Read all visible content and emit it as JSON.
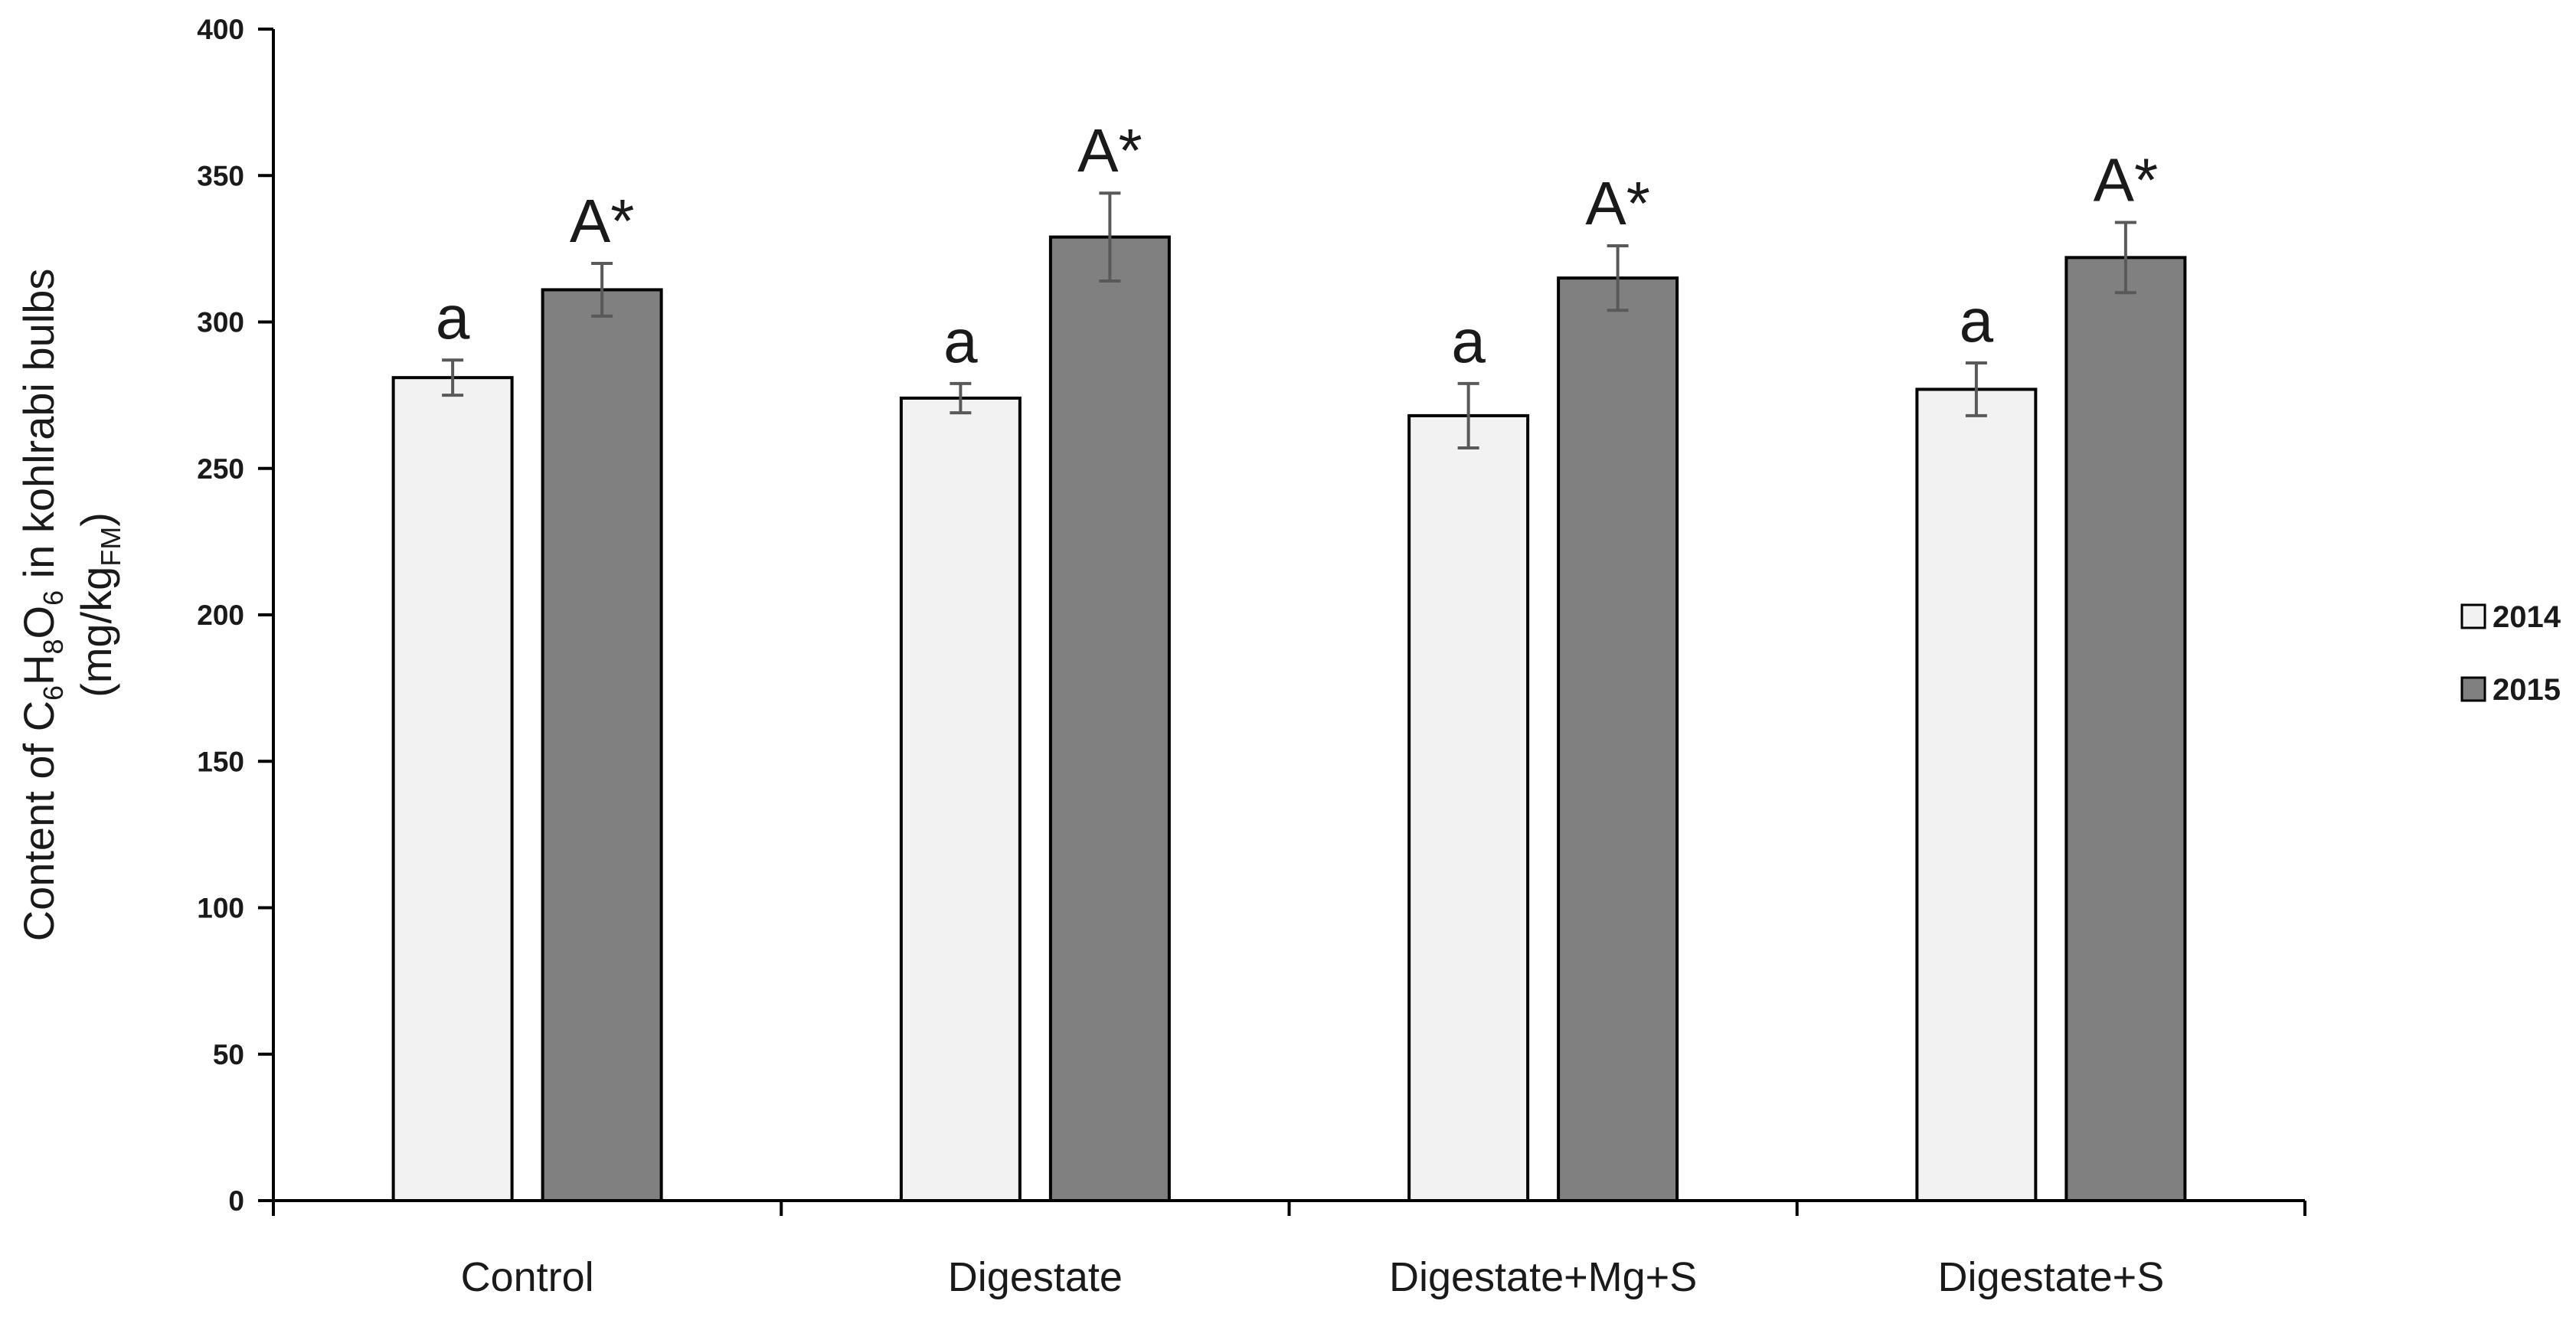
{
  "chart_data": {
    "type": "bar",
    "categories": [
      "Control",
      "Digestate",
      "Digestate+Mg+S",
      "Digestate+S"
    ],
    "series": [
      {
        "name": "2014",
        "color": "#f2f2f2",
        "values": [
          281,
          274,
          268,
          277
        ],
        "errors": [
          6,
          5,
          11,
          9
        ],
        "labels": [
          "a",
          "a",
          "a",
          "a"
        ]
      },
      {
        "name": "2015",
        "color": "#808080",
        "values": [
          311,
          329,
          315,
          322
        ],
        "errors": [
          9,
          15,
          11,
          12
        ],
        "labels": [
          "A*",
          "A*",
          "A*",
          "A*"
        ]
      }
    ],
    "ylim": [
      0,
      400
    ],
    "yticks": [
      0,
      50,
      100,
      150,
      200,
      250,
      300,
      350,
      400
    ],
    "xlabel": "",
    "ylabel": {
      "line1": [
        "Content of C",
        "6",
        "H",
        "8",
        "O",
        "6",
        " in  kohlrabi bulbs"
      ],
      "line2": [
        "(mg/kg",
        "FM",
        ")"
      ]
    },
    "legend_position": "right",
    "grid": false,
    "axis_color": "#000000",
    "errorbar_color": "#595959"
  }
}
